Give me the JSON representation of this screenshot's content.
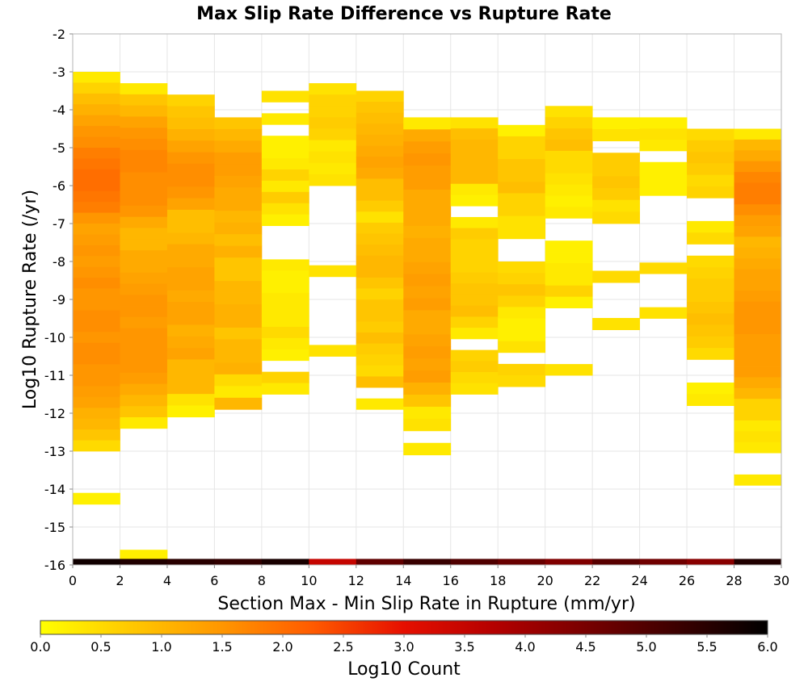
{
  "chart_data": {
    "type": "heatmap",
    "title": "Max Slip Rate Difference vs Rupture Rate",
    "xlabel": "Section Max - Min Slip Rate in Rupture (mm/yr)",
    "ylabel": "Log10 Rupture Rate (/yr)",
    "xlim": [
      0,
      30
    ],
    "ylim": [
      -16,
      -2
    ],
    "x_ticks": [
      "0",
      "2",
      "4",
      "6",
      "8",
      "10",
      "12",
      "14",
      "16",
      "18",
      "20",
      "22",
      "24",
      "26",
      "28",
      "30"
    ],
    "y_ticks": [
      "-2",
      "-3",
      "-4",
      "-5",
      "-6",
      "-7",
      "-8",
      "-9",
      "-10",
      "-11",
      "-12",
      "-13",
      "-14",
      "-15",
      "-16"
    ],
    "x_bin_width": 2,
    "y_bin_height": 0.3,
    "grid": true,
    "colorbar": {
      "label": "Log10 Count",
      "range": [
        0,
        6
      ],
      "ticks": [
        "0.0",
        "0.5",
        "1.0",
        "1.5",
        "2.0",
        "2.5",
        "3.0",
        "3.5",
        "4.0",
        "4.5",
        "5.0",
        "5.5",
        "6.0"
      ],
      "colors": [
        "#ffff00",
        "#ffc800",
        "#ff9600",
        "#ff5a00",
        "#e60f00",
        "#b40000",
        "#780000",
        "#3c0000",
        "#000000"
      ]
    },
    "cells": [
      {
        "x": 0,
        "y_top": -3.0,
        "y_bottom": -13.0,
        "values": [
          0.3,
          0.6,
          0.9,
          1.1,
          1.3,
          1.5,
          1.6,
          1.8,
          1.9,
          2.0,
          2.0,
          1.9,
          1.8,
          1.5,
          1.3,
          1.4,
          1.5,
          1.4,
          1.5,
          1.6,
          1.5,
          1.5,
          1.6,
          1.6,
          1.5,
          1.6,
          1.6,
          1.5,
          1.5,
          1.4,
          1.3,
          1.1,
          1.0,
          0.8,
          0.5
        ]
      },
      {
        "x": 0,
        "y_top": -14.1,
        "y_bottom": -14.4,
        "values": [
          0.2
        ]
      },
      {
        "x": 2,
        "y_top": -3.3,
        "y_bottom": -12.4,
        "values": [
          0.3,
          0.8,
          1.0,
          1.3,
          1.5,
          1.6,
          1.7,
          1.7,
          1.6,
          1.6,
          1.6,
          1.5,
          1.2,
          1.0,
          1.0,
          1.2,
          1.2,
          1.3,
          1.4,
          1.5,
          1.5,
          1.4,
          1.5,
          1.5,
          1.5,
          1.5,
          1.4,
          1.2,
          1.0,
          0.8,
          0.3
        ]
      },
      {
        "x": 2,
        "y_top": -15.6,
        "y_bottom": -15.9,
        "values": [
          0.2
        ]
      },
      {
        "x": 4,
        "y_top": -3.6,
        "y_bottom": -12.1,
        "values": [
          0.6,
          0.8,
          0.9,
          1.1,
          1.3,
          1.5,
          1.6,
          1.6,
          1.5,
          1.3,
          0.9,
          0.9,
          1.0,
          1.2,
          1.2,
          1.3,
          1.3,
          1.2,
          1.3,
          1.3,
          1.1,
          1.2,
          1.3,
          1.0,
          1.0,
          1.0,
          0.4,
          0.2
        ]
      },
      {
        "x": 6,
        "y_top": -4.2,
        "y_bottom": -11.9,
        "values": [
          0.8,
          1.0,
          1.2,
          1.4,
          1.4,
          1.3,
          1.2,
          1.2,
          1.0,
          1.1,
          0.9,
          1.1,
          0.8,
          0.8,
          1.0,
          1.0,
          1.1,
          1.1,
          0.8,
          1.0,
          1.0,
          1.1,
          0.5,
          0.3,
          1.0
        ]
      },
      {
        "x": 8,
        "y_top": -3.5,
        "y_bottom": -11.5,
        "values": [
          0.4,
          null,
          0.3,
          null,
          0.2,
          0.2,
          0.3,
          0.6,
          0.3,
          0.7,
          0.4,
          0.2,
          null,
          null,
          null,
          0.3,
          0.2,
          0.2,
          0.3,
          0.3,
          0.3,
          0.5,
          0.3,
          0.2,
          null,
          0.6,
          0.3
        ]
      },
      {
        "x": 10,
        "y_top": -3.3,
        "y_bottom": -10.5,
        "values": [
          0.4,
          0.6,
          0.6,
          0.7,
          0.6,
          0.3,
          0.4,
          0.3,
          0.4,
          null,
          null,
          null,
          null,
          null,
          null,
          null,
          0.4,
          null,
          null,
          null,
          null,
          null,
          null,
          0.4
        ]
      },
      {
        "x": 12,
        "y_top": -3.5,
        "y_bottom": -11.9,
        "values": [
          0.6,
          0.8,
          0.9,
          1.0,
          1.1,
          1.2,
          1.3,
          1.2,
          0.9,
          0.9,
          0.7,
          0.4,
          0.7,
          0.8,
          0.9,
          1.0,
          1.0,
          0.8,
          0.6,
          0.8,
          0.8,
          0.7,
          0.9,
          0.7,
          0.6,
          0.5,
          0.9,
          null,
          0.3
        ]
      },
      {
        "x": 14,
        "y_top": -4.2,
        "y_bottom": -13.1,
        "values": [
          0.3,
          1.2,
          1.4,
          1.5,
          1.4,
          1.4,
          1.2,
          1.2,
          1.2,
          1.1,
          1.2,
          1.2,
          1.3,
          1.4,
          1.3,
          1.4,
          1.2,
          1.2,
          1.3,
          1.4,
          1.3,
          1.4,
          1.1,
          0.8,
          0.3,
          0.4,
          null,
          0.3
        ]
      },
      {
        "x": 16,
        "y_top": -4.2,
        "y_bottom": -11.5,
        "values": [
          0.4,
          0.9,
          1.0,
          1.0,
          1.0,
          1.0,
          0.3,
          0.2,
          null,
          0.3,
          0.7,
          0.6,
          0.6,
          0.6,
          0.7,
          0.8,
          0.8,
          0.9,
          0.6,
          0.3,
          null,
          0.6,
          0.7,
          0.5,
          0.4
        ]
      },
      {
        "x": 18,
        "y_top": -4.4,
        "y_bottom": -11.3,
        "values": [
          0.2,
          0.6,
          0.6,
          0.8,
          0.8,
          0.9,
          0.6,
          0.6,
          0.4,
          0.4,
          null,
          null,
          0.5,
          0.6,
          0.8,
          0.6,
          0.3,
          0.2,
          0.2,
          0.4,
          null,
          0.6,
          0.5
        ]
      },
      {
        "x": 20,
        "y_top": -3.9,
        "y_bottom": -11.0,
        "values": [
          0.4,
          0.6,
          0.8,
          0.9,
          0.5,
          0.5,
          0.4,
          0.3,
          0.2,
          0.3,
          null,
          null,
          0.2,
          0.2,
          0.3,
          0.3,
          0.6,
          0.2,
          null,
          null,
          null,
          null,
          null,
          0.4
        ]
      },
      {
        "x": 22,
        "y_top": -4.2,
        "y_bottom": -9.8,
        "values": [
          0.2,
          0.4,
          null,
          0.7,
          0.7,
          0.8,
          0.7,
          0.4,
          0.5,
          null,
          null,
          null,
          null,
          0.5,
          null,
          null,
          null,
          0.4
        ]
      },
      {
        "x": 24,
        "y_top": -4.2,
        "y_bottom": -9.5,
        "values": [
          0.2,
          0.4,
          0.3,
          null,
          0.2,
          0.2,
          0.2,
          null,
          null,
          null,
          null,
          null,
          null,
          0.5,
          null,
          null,
          null,
          0.4
        ]
      },
      {
        "x": 26,
        "y_top": -4.5,
        "y_bottom": -11.8,
        "values": [
          0.5,
          0.7,
          0.8,
          0.7,
          0.5,
          0.6,
          null,
          null,
          0.3,
          0.5,
          null,
          0.5,
          0.6,
          0.7,
          0.7,
          0.8,
          0.9,
          0.8,
          0.7,
          0.5,
          null,
          null,
          0.2,
          0.3
        ]
      },
      {
        "x": 28,
        "y_top": -4.5,
        "y_bottom": -13.9,
        "values": [
          0.3,
          1.0,
          1.2,
          1.5,
          1.7,
          1.8,
          1.8,
          1.6,
          1.4,
          1.3,
          1.0,
          1.1,
          1.2,
          1.3,
          1.3,
          1.4,
          1.5,
          1.5,
          1.5,
          1.4,
          1.4,
          1.4,
          1.4,
          1.2,
          1.0,
          0.6,
          0.6,
          0.3,
          0.4,
          0.3,
          null,
          null,
          0.3
        ]
      },
      {
        "x": 0,
        "y_top": -15.84,
        "y_bottom": -16.0,
        "values": [
          5.8
        ]
      },
      {
        "x": 2,
        "y_top": -15.84,
        "y_bottom": -16.0,
        "values": [
          5.6
        ]
      },
      {
        "x": 4,
        "y_top": -15.84,
        "y_bottom": -16.0,
        "values": [
          5.5
        ]
      },
      {
        "x": 6,
        "y_top": -15.84,
        "y_bottom": -16.0,
        "values": [
          5.4
        ]
      },
      {
        "x": 8,
        "y_top": -15.84,
        "y_bottom": -16.0,
        "values": [
          5.7
        ]
      },
      {
        "x": 10,
        "y_top": -15.84,
        "y_bottom": -16.0,
        "values": [
          3.5
        ]
      },
      {
        "x": 12,
        "y_top": -15.84,
        "y_bottom": -16.0,
        "values": [
          4.8
        ]
      },
      {
        "x": 14,
        "y_top": -15.84,
        "y_bottom": -16.0,
        "values": [
          5.3
        ]
      },
      {
        "x": 16,
        "y_top": -15.84,
        "y_bottom": -16.0,
        "values": [
          5.0
        ]
      },
      {
        "x": 18,
        "y_top": -15.84,
        "y_bottom": -16.0,
        "values": [
          4.7
        ]
      },
      {
        "x": 20,
        "y_top": -15.84,
        "y_bottom": -16.0,
        "values": [
          4.4
        ]
      },
      {
        "x": 22,
        "y_top": -15.84,
        "y_bottom": -16.0,
        "values": [
          4.9
        ]
      },
      {
        "x": 24,
        "y_top": -15.84,
        "y_bottom": -16.0,
        "values": [
          4.6
        ]
      },
      {
        "x": 26,
        "y_top": -15.84,
        "y_bottom": -16.0,
        "values": [
          4.3
        ]
      },
      {
        "x": 28,
        "y_top": -15.84,
        "y_bottom": -16.0,
        "values": [
          5.6
        ]
      }
    ]
  }
}
